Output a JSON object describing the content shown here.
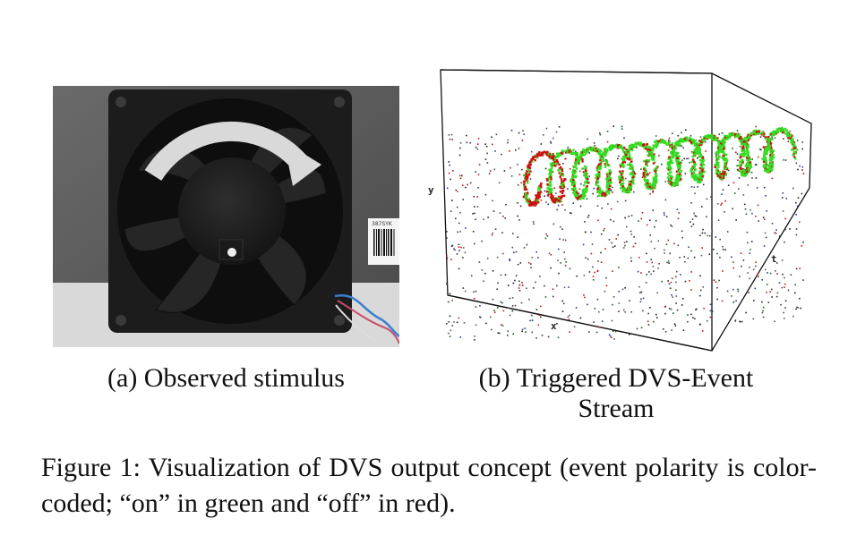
{
  "subfigure_a": {
    "caption": "(a) Observed stimulus",
    "label_sticker_text": "387SYK"
  },
  "subfigure_b": {
    "caption_line1": "(b) Triggered DVS-Event",
    "caption_line2": "Stream",
    "axis_x": "x",
    "axis_y": "y",
    "axis_t": "t"
  },
  "figure_caption": "Figure 1: Visualization of DVS output concept (event polarity is color-coded; “on” in green and “off” in red).",
  "colors": {
    "on_event": "#33dd22",
    "off_event": "#cc1111",
    "fan_body": "#1c1c1c",
    "arrow": "#d9d9d9"
  }
}
